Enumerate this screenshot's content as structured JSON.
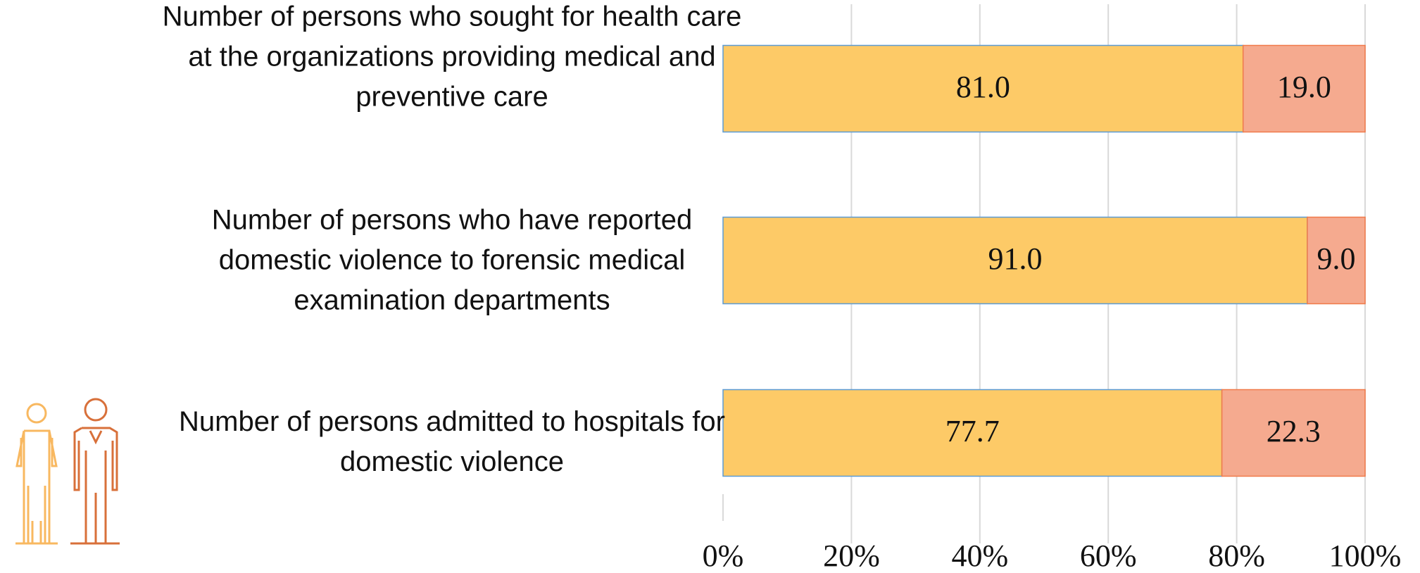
{
  "chart_data": {
    "type": "stacked_barh",
    "categories": [
      "Number of persons who sought for health care\nat the organizations providing medical and\npreventive care",
      "Number of persons who have reported\ndomestic violence to forensic medical\nexamination departments",
      "Number of persons admitted to hospitals for\ndomestic violence"
    ],
    "series": [
      {
        "color": "#fdca67",
        "values": [
          81,
          91,
          77.7
        ],
        "value_labels": [
          "81.0",
          "91.0",
          "77.7"
        ]
      },
      {
        "color": "#f5aa8f",
        "values": [
          19,
          9,
          22.3
        ],
        "value_labels": [
          "19.0",
          "9.0",
          "22.3"
        ]
      }
    ],
    "xlim": [
      0,
      100
    ],
    "xticks": [
      {
        "value": 0,
        "label": "0%"
      },
      {
        "value": 20,
        "label": "20%"
      },
      {
        "value": 40,
        "label": "40%"
      },
      {
        "value": 60,
        "label": "60%"
      },
      {
        "value": 80,
        "label": "80%"
      },
      {
        "value": 100,
        "label": "100%"
      }
    ],
    "grid": true
  }
}
